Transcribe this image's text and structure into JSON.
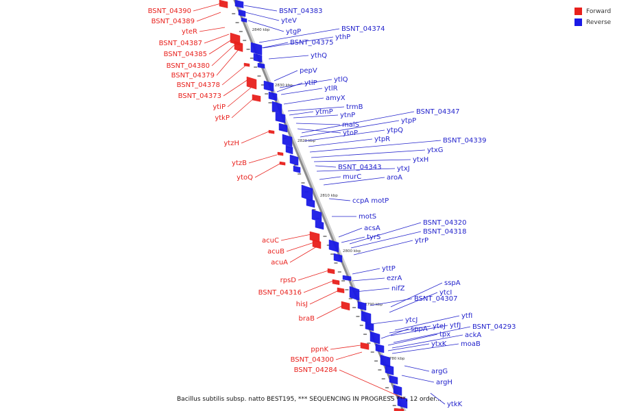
{
  "legend": [
    {
      "label": "Forward",
      "color": "#e8201c"
    },
    {
      "label": "Reverse",
      "color": "#1a1ae6"
    }
  ],
  "colors": {
    "forward": "#e8201c",
    "reverse": "#1a1ae6",
    "axis": "#8c8c8c",
    "leader_fwd": "#e8201c",
    "leader_rev": "#2222cc"
  },
  "footer": "Bacillus subtilis subsp. natto BEST195, *** SEQUENCING IN PROGRESS ***, 12 order...",
  "ticks": [
    "2840 kbp",
    "2830 kbp",
    "2820 kbp",
    "2810 kbp",
    "2800 kbp",
    "2790 kbp",
    "2780 kbp"
  ],
  "genes_forward": [
    "BSNT_04390",
    "BSNT_04389",
    "yteR",
    "BSNT_04387",
    "BSNT_04385",
    "BSNT_04380",
    "BSNT_04379",
    "BSNT_04378",
    "BSNT_04373",
    "ytiP",
    "ytkP",
    "ytzH",
    "ytzB",
    "ytoQ",
    "acuC",
    "acuB",
    "acuA",
    "rpsD",
    "BSNT_04316",
    "hisJ",
    "braB",
    "ppnK",
    "BSNT_04300",
    "BSNT_04284"
  ],
  "genes_reverse": [
    "BSNT_04383",
    "yteV",
    "ytgP",
    "BSNT_04374",
    "ythP",
    "BSNT_04375",
    "ythQ",
    "pepV",
    "ytlQ",
    "ytlP",
    "ytlR",
    "amyX",
    "trmB",
    "ytmP",
    "ytnP",
    "malS",
    "ytoP",
    "BSNT_04347",
    "ytpP",
    "ytpQ",
    "ytpR",
    "BSNT_04339",
    "ytxG",
    "ytxH",
    "BSNT_04343",
    "ytxJ",
    "murC",
    "aroA",
    "ccpA motP",
    "motS",
    "BSNT_04320",
    "acsA",
    "BSNT_04318",
    "tyrS",
    "ytrP",
    "yttP",
    "ezrA",
    "nifZ",
    "sspA",
    "ytcI",
    "BSNT_04307",
    "ytfI",
    "ytcJ",
    "ytfJ",
    "yteJ",
    "sppA",
    "BSNT_04293",
    "tpx",
    "ackA",
    "ytxK",
    "moaB",
    "argG",
    "argH",
    "ytkK"
  ]
}
